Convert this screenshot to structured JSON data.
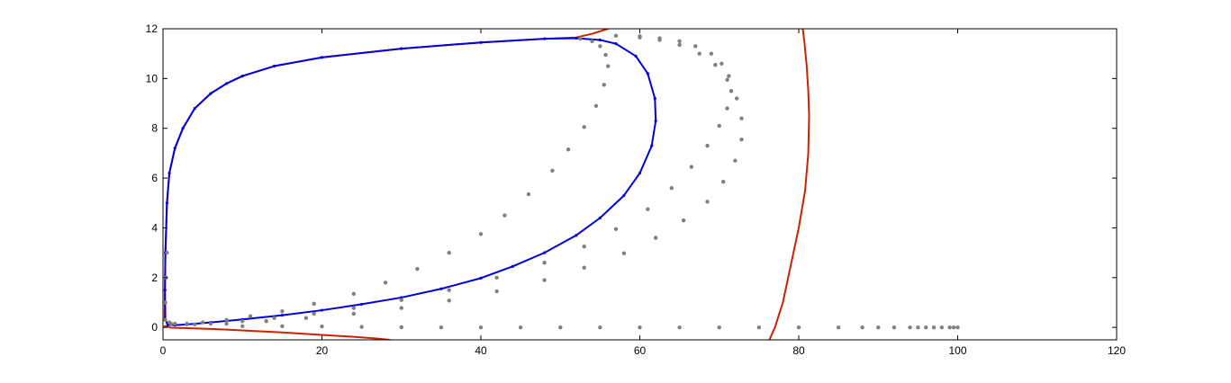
{
  "chart_data": {
    "type": "scatter",
    "title": "",
    "xlabel": "",
    "ylabel": "",
    "xlim": [
      0,
      120
    ],
    "ylim": [
      -0.5,
      12
    ],
    "x_ticks": [
      0,
      20,
      40,
      60,
      80,
      100,
      120
    ],
    "y_ticks": [
      0,
      2,
      4,
      6,
      8,
      10,
      12
    ],
    "x_tick_labels": [
      "0",
      "20",
      "40",
      "60",
      "80",
      "100",
      "120"
    ],
    "y_tick_labels": [
      "0",
      "2",
      "4",
      "6",
      "8",
      "10",
      "12"
    ],
    "grid": false,
    "legend": "none",
    "colors": {
      "red": "#cc2200",
      "blue": "#0000dd",
      "gray": "#808080"
    },
    "series": [
      {
        "style": "line",
        "color": "red",
        "x": [
          0.2,
          0.3,
          0.5,
          0.8,
          1.5,
          2.5,
          4,
          6,
          8,
          10,
          14,
          20,
          30,
          40,
          48,
          52,
          54,
          56
        ],
        "y": [
          0.3,
          3,
          5,
          6.2,
          7.2,
          8.0,
          8.8,
          9.4,
          9.8,
          10.1,
          10.5,
          10.85,
          11.2,
          11.45,
          11.6,
          11.65,
          11.8,
          12
        ]
      },
      {
        "style": "line",
        "color": "red",
        "x": [
          0.2,
          1,
          3,
          6,
          10,
          15,
          20,
          24,
          27,
          28.5
        ],
        "y": [
          0.05,
          -0.01,
          -0.03,
          -0.06,
          -0.12,
          -0.2,
          -0.3,
          -0.38,
          -0.45,
          -0.5
        ]
      },
      {
        "style": "line",
        "color": "red",
        "x": [
          76.3,
          77,
          78,
          79,
          80,
          80.8,
          81.2,
          81.3,
          81.2,
          81,
          80.7,
          80.5
        ],
        "y": [
          -0.5,
          0,
          1,
          2.5,
          4,
          5.5,
          7,
          8.5,
          9.5,
          10.5,
          11.5,
          12
        ]
      },
      {
        "style": "line",
        "color": "blue",
        "x": [
          0.3,
          0.25,
          0.3,
          0.5,
          0.8,
          1.5,
          2.5,
          4,
          6,
          8,
          10,
          14,
          20,
          30,
          40,
          48,
          52,
          55,
          57,
          59.5,
          61,
          61.9,
          62,
          61.5,
          60,
          58,
          55,
          52,
          48,
          44,
          40,
          35,
          30,
          25,
          20,
          15,
          10,
          6,
          3,
          1.5,
          0.6,
          0.3
        ],
        "y": [
          0.3,
          1.5,
          3,
          5,
          6.2,
          7.2,
          8.0,
          8.8,
          9.4,
          9.8,
          10.1,
          10.5,
          10.85,
          11.2,
          11.45,
          11.6,
          11.62,
          11.55,
          11.4,
          10.9,
          10.2,
          9.2,
          8.3,
          7.3,
          6.2,
          5.3,
          4.4,
          3.7,
          3.0,
          2.45,
          1.98,
          1.55,
          1.2,
          0.93,
          0.69,
          0.49,
          0.32,
          0.2,
          0.12,
          0.09,
          0.1,
          0.3
        ]
      },
      {
        "style": "dots",
        "color": "gray",
        "x": [
          0.3,
          0.3,
          0.4,
          0.5,
          0.8,
          1.5,
          3,
          5,
          8,
          11,
          15,
          19,
          24,
          28,
          32,
          36,
          40,
          43,
          46,
          49,
          51,
          53,
          54.5,
          55.5,
          56,
          55.7,
          55,
          54,
          52.5
        ],
        "y": [
          0.3,
          1.0,
          2.0,
          3.0,
          0.2,
          0.15,
          0.15,
          0.2,
          0.3,
          0.45,
          0.65,
          0.95,
          1.35,
          1.8,
          2.35,
          3.0,
          3.75,
          4.5,
          5.35,
          6.3,
          7.15,
          8.05,
          8.9,
          9.75,
          10.5,
          10.95,
          11.3,
          11.5,
          11.6
        ]
      },
      {
        "style": "dots",
        "color": "gray",
        "x": [
          1,
          3,
          6,
          10,
          14,
          19,
          24,
          30,
          36,
          42,
          48,
          53,
          57,
          61,
          64,
          66.5,
          68.5,
          70,
          71,
          71.5,
          71.2,
          70.3,
          69,
          67,
          65,
          62.5,
          60,
          57
        ],
        "y": [
          0.15,
          0.12,
          0.15,
          0.25,
          0.38,
          0.55,
          0.78,
          1.1,
          1.5,
          2.0,
          2.6,
          3.25,
          3.95,
          4.75,
          5.6,
          6.45,
          7.3,
          8.1,
          8.8,
          9.5,
          10.1,
          10.6,
          11.0,
          11.3,
          11.5,
          11.62,
          11.7,
          11.72
        ]
      },
      {
        "style": "dots",
        "color": "gray",
        "x": [
          4,
          8,
          13,
          18,
          24,
          30,
          36,
          42,
          48,
          53,
          58,
          62,
          65.5,
          68.5,
          70.5,
          72,
          72.8,
          72.8,
          72.2,
          71,
          69.5,
          67.5,
          65,
          62.5,
          60
        ],
        "y": [
          0.12,
          0.15,
          0.25,
          0.38,
          0.55,
          0.78,
          1.08,
          1.45,
          1.9,
          2.4,
          2.98,
          3.6,
          4.3,
          5.05,
          5.85,
          6.7,
          7.55,
          8.4,
          9.2,
          9.95,
          10.55,
          11.0,
          11.35,
          11.55,
          11.65
        ]
      },
      {
        "style": "dots",
        "color": "gray",
        "x": [
          10,
          15,
          20,
          25,
          30,
          35,
          40,
          45,
          50,
          55,
          60,
          65,
          70,
          75,
          80,
          85,
          88,
          90,
          92,
          94,
          95,
          96,
          97,
          98,
          99,
          99.5,
          100
        ],
        "y": [
          0.05,
          0.05,
          0.04,
          0.02,
          0.01,
          0,
          0,
          0,
          0,
          0,
          0,
          0,
          0,
          0,
          0,
          0,
          0,
          0,
          0,
          0,
          0,
          0,
          0,
          0,
          0,
          0,
          0
        ]
      }
    ]
  }
}
